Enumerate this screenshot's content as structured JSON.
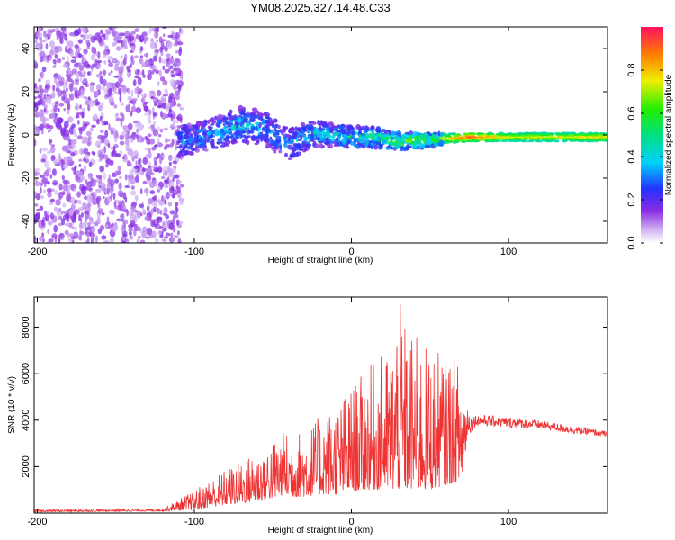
{
  "title": "YM08.2025.327.14.48.C33",
  "chart_data": [
    {
      "type": "heatmap",
      "name": "spectrogram",
      "xlabel": "Height of straight line (km)",
      "ylabel": "Frequency (Hz)",
      "xlim": [
        -202,
        163
      ],
      "ylim": [
        -50,
        50
      ],
      "xticks": [
        -200,
        -100,
        0,
        100
      ],
      "yticks": [
        -40,
        -20,
        0,
        20,
        40
      ],
      "colorbar": {
        "label": "Normalized spectral amplitude",
        "range": [
          0,
          1
        ],
        "ticks": [
          "0.0",
          "0.2",
          "0.4",
          "0.6",
          "0.8"
        ]
      },
      "noise_region_km": [
        -202,
        -108
      ],
      "signal_band": [
        {
          "km": -110,
          "center_hz": -3,
          "width_hz": 14,
          "amp": 0.35
        },
        {
          "km": -90,
          "center_hz": 0,
          "width_hz": 14,
          "amp": 0.35
        },
        {
          "km": -70,
          "center_hz": 5,
          "width_hz": 16,
          "amp": 0.4
        },
        {
          "km": -55,
          "center_hz": 3,
          "width_hz": 16,
          "amp": 0.35
        },
        {
          "km": -40,
          "center_hz": -5,
          "width_hz": 15,
          "amp": 0.35
        },
        {
          "km": -25,
          "center_hz": 1,
          "width_hz": 12,
          "amp": 0.4
        },
        {
          "km": -5,
          "center_hz": -1,
          "width_hz": 10,
          "amp": 0.45
        },
        {
          "km": 10,
          "center_hz": -1,
          "width_hz": 10,
          "amp": 0.5
        },
        {
          "km": 30,
          "center_hz": -3,
          "width_hz": 8,
          "amp": 0.6
        },
        {
          "km": 55,
          "center_hz": -2,
          "width_hz": 6,
          "amp": 0.7
        },
        {
          "km": 75,
          "center_hz": -1,
          "width_hz": 5,
          "amp": 0.95
        },
        {
          "km": 100,
          "center_hz": -1,
          "width_hz": 5,
          "amp": 0.75
        },
        {
          "km": 163,
          "center_hz": -1,
          "width_hz": 5,
          "amp": 0.8
        }
      ]
    },
    {
      "type": "line",
      "name": "snr",
      "xlabel": "Height of straight line (km)",
      "ylabel": "SNR (10 * v/v)",
      "xlim": [
        -202,
        163
      ],
      "ylim": [
        0,
        9300
      ],
      "xticks": [
        -200,
        -100,
        0,
        100
      ],
      "yticks": [
        2000,
        4000,
        6000,
        8000
      ],
      "color": "#ee3333",
      "envelope": {
        "x": [
          -202,
          -120,
          -100,
          -90,
          -80,
          -60,
          -45,
          -30,
          -20,
          -10,
          0,
          10,
          20,
          25,
          30,
          35,
          40,
          50,
          60,
          70,
          75,
          80,
          100,
          120,
          140,
          163
        ],
        "base": [
          50,
          80,
          150,
          250,
          350,
          500,
          700,
          700,
          800,
          800,
          900,
          1000,
          1000,
          1000,
          1000,
          1000,
          1000,
          1000,
          1200,
          1400,
          3800,
          4000,
          3900,
          3800,
          3600,
          3400
        ],
        "peak": [
          150,
          200,
          1000,
          1500,
          1900,
          2700,
          3500,
          3600,
          4200,
          4700,
          5500,
          6200,
          6900,
          7000,
          9300,
          8000,
          7800,
          7000,
          7000,
          6500,
          4500,
          4400,
          4300,
          4100,
          3900,
          3600
        ]
      }
    }
  ]
}
